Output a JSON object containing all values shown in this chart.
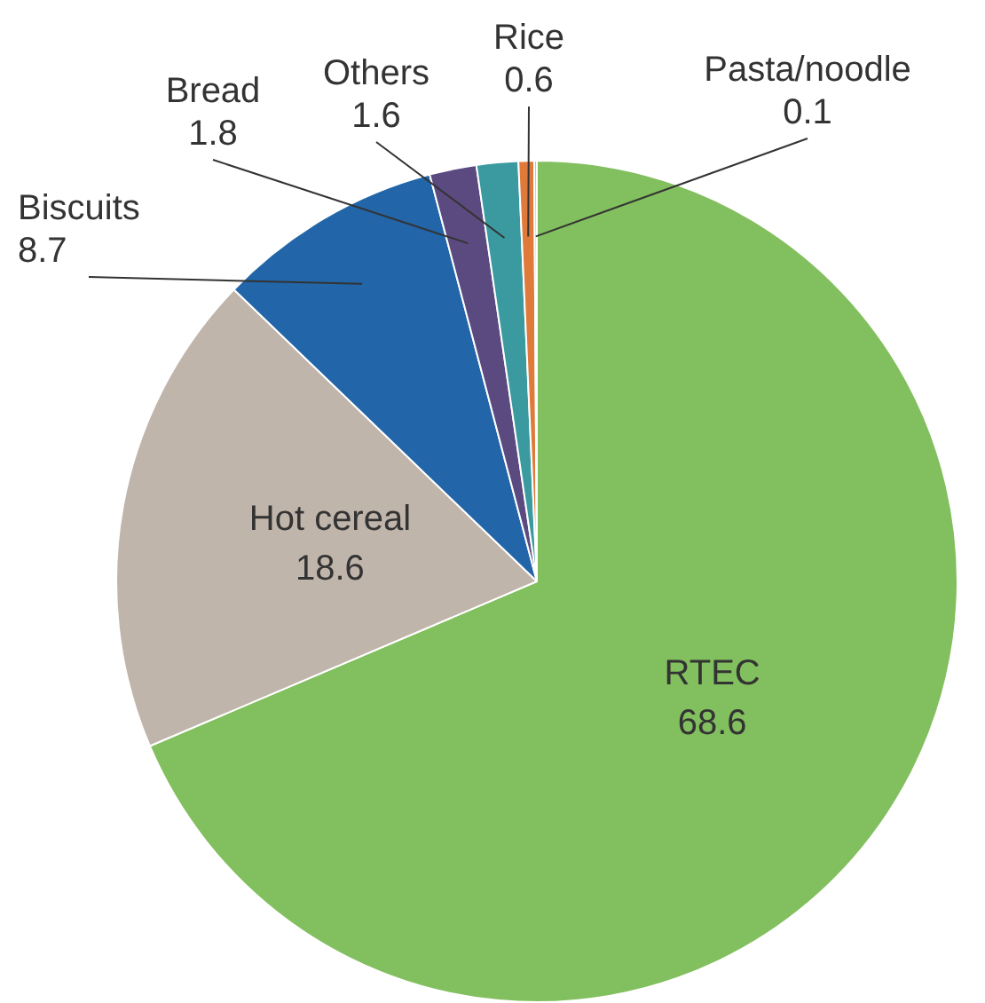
{
  "chart_data": {
    "type": "pie",
    "categories": [
      "RTEC",
      "Hot cereal",
      "Biscuits",
      "Bread",
      "Others",
      "Rice",
      "Pasta/noodle"
    ],
    "values": [
      68.6,
      18.6,
      8.7,
      1.8,
      1.6,
      0.6,
      0.1
    ],
    "colors": [
      "#82bf5e",
      "#c0b5ab",
      "#2265a8",
      "#5a4a80",
      "#3a9aa0",
      "#e07a3a",
      "#f2b27a"
    ],
    "data_labels": true
  }
}
